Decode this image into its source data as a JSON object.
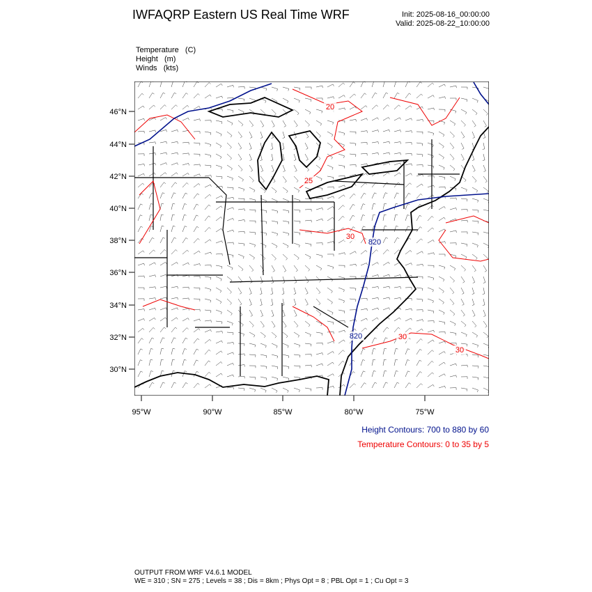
{
  "header": {
    "title": "IWFAQRP Eastern US Real Time WRF",
    "init": "Init: 2025-08-16_00:00:00",
    "valid": "Valid: 2025-08-22_10:00:00"
  },
  "fields": [
    "Temperature   (C)",
    "Height   (m)",
    "Winds   (kts)"
  ],
  "map": {
    "lat_labels": [
      "46°N",
      "44°N",
      "42°N",
      "40°N",
      "38°N",
      "36°N",
      "34°N",
      "32°N",
      "30°N"
    ],
    "lon_labels": [
      "95°W",
      "90°W",
      "85°W",
      "80°W",
      "75°W"
    ],
    "contour_labels": [
      "20",
      "25",
      "30",
      "30",
      "30",
      "820",
      "820"
    ]
  },
  "legend": {
    "height": "Height Contours: 700 to 880 by 60",
    "temperature": "Temperature Contours: 0 to 35 by 5"
  },
  "footer": {
    "line1": "OUTPUT FROM WRF V4.6.1 MODEL",
    "line2": "WE = 310 ; SN = 275 ; Levels = 38 ; Dis = 8km ; Phys Opt = 8 ; PBL Opt = 1 ; Cu Opt = 3"
  }
}
